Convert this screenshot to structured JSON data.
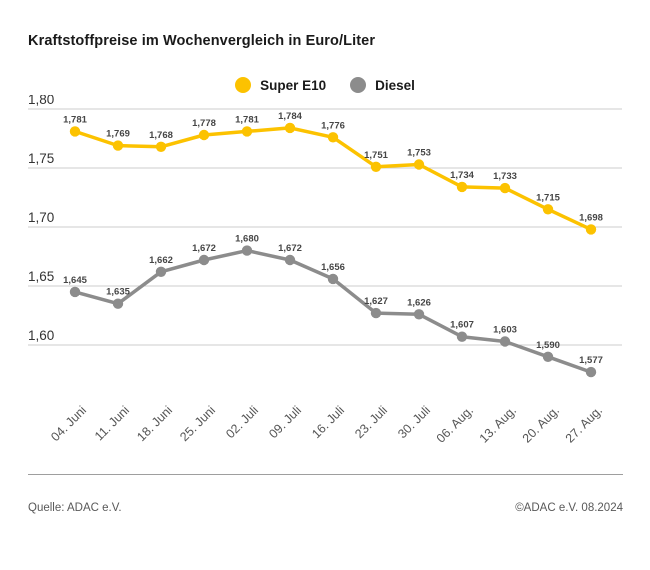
{
  "title": "Kraftstoffpreise im Wochenvergleich in Euro/Liter",
  "footer": {
    "source": "Quelle: ADAC e.V.",
    "copyright": "©ADAC e.V. 08.2024"
  },
  "colors": {
    "super_e10": "#FCC200",
    "diesel": "#8C8C8C",
    "gridline": "#CCCCCC",
    "title_text": "#1A1A1A",
    "axis_text": "#333333",
    "data_label_text": "#464646",
    "background": "#FFFFFF"
  },
  "chart_data": {
    "type": "line",
    "title": "Kraftstoffpreise im Wochenvergleich in Euro/Liter",
    "xlabel": "",
    "ylabel": "Euro/Liter",
    "ylim": [
      1.575,
      1.805
    ],
    "grid": true,
    "legend_position": "top-center",
    "categories": [
      "04. Juni",
      "11. Juni",
      "18. Juni",
      "25. Juni",
      "02. Juli",
      "09. Juli",
      "16. Juli",
      "23. Juli",
      "30. Juli",
      "06. Aug.",
      "13. Aug.",
      "20. Aug.",
      "27. Aug."
    ],
    "yticks": [
      {
        "value": 1.8,
        "label": "1,80"
      },
      {
        "value": 1.75,
        "label": "1,75"
      },
      {
        "value": 1.7,
        "label": "1,70"
      },
      {
        "value": 1.65,
        "label": "1,65"
      },
      {
        "value": 1.6,
        "label": "1,60"
      }
    ],
    "series": [
      {
        "name": "Super E10",
        "color": "#FCC200",
        "values": [
          1.781,
          1.769,
          1.768,
          1.778,
          1.781,
          1.784,
          1.776,
          1.751,
          1.753,
          1.734,
          1.733,
          1.715,
          1.698
        ],
        "labels": [
          "1,781",
          "1,769",
          "1,768",
          "1,778",
          "1,781",
          "1,784",
          "1,776",
          "1,751",
          "1,753",
          "1,734",
          "1,733",
          "1,715",
          "1,698"
        ]
      },
      {
        "name": "Diesel",
        "color": "#8C8C8C",
        "values": [
          1.645,
          1.635,
          1.662,
          1.672,
          1.68,
          1.672,
          1.656,
          1.627,
          1.626,
          1.607,
          1.603,
          1.59,
          1.577
        ],
        "labels": [
          "1,645",
          "1,635",
          "1,662",
          "1,672",
          "1,680",
          "1,672",
          "1,656",
          "1,627",
          "1,626",
          "1,607",
          "1,603",
          "1,590",
          "1,577"
        ]
      }
    ]
  }
}
